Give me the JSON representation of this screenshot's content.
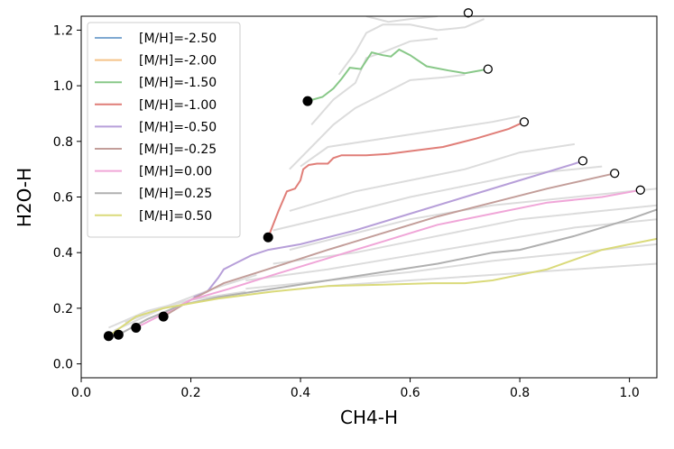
{
  "chart_data": {
    "type": "line",
    "xlabel": "CH4-H",
    "ylabel": "H2O-H",
    "xlim": [
      0.0,
      1.05
    ],
    "ylim": [
      -0.05,
      1.25
    ],
    "xticks": [
      "0.0",
      "0.2",
      "0.4",
      "0.6",
      "0.8",
      "1.0"
    ],
    "yticks": [
      "0.0",
      "0.2",
      "0.4",
      "0.6",
      "0.8",
      "1.0",
      "1.2"
    ],
    "grid": false,
    "legend_position": "top-left",
    "series": [
      {
        "name": "[M/H]=-2.50",
        "color": "#7fa9d1",
        "points": [
          [
            0.7,
            1.26
          ],
          [
            0.706,
            1.262
          ]
        ],
        "start_marker": null,
        "end_marker": [
          0.706,
          1.262
        ]
      },
      {
        "name": "[M/H]=-2.00",
        "color": "#f5c389",
        "points": [],
        "start_marker": null,
        "end_marker": null
      },
      {
        "name": "[M/H]=-1.50",
        "color": "#88c888",
        "points": [
          [
            0.413,
            0.945
          ],
          [
            0.44,
            0.96
          ],
          [
            0.46,
            0.99
          ],
          [
            0.475,
            1.025
          ],
          [
            0.49,
            1.065
          ],
          [
            0.51,
            1.06
          ],
          [
            0.53,
            1.12
          ],
          [
            0.55,
            1.11
          ],
          [
            0.565,
            1.105
          ],
          [
            0.58,
            1.13
          ],
          [
            0.6,
            1.11
          ],
          [
            0.63,
            1.07
          ],
          [
            0.67,
            1.055
          ],
          [
            0.7,
            1.045
          ],
          [
            0.742,
            1.06
          ]
        ],
        "start_marker": [
          0.413,
          0.945
        ],
        "end_marker": [
          0.742,
          1.06
        ]
      },
      {
        "name": "[M/H]=-1.00",
        "color": "#e07e78",
        "points": [
          [
            0.341,
            0.455
          ],
          [
            0.35,
            0.5
          ],
          [
            0.36,
            0.55
          ],
          [
            0.375,
            0.62
          ],
          [
            0.39,
            0.63
          ],
          [
            0.4,
            0.66
          ],
          [
            0.405,
            0.7
          ],
          [
            0.415,
            0.715
          ],
          [
            0.43,
            0.72
          ],
          [
            0.45,
            0.72
          ],
          [
            0.46,
            0.74
          ],
          [
            0.475,
            0.75
          ],
          [
            0.52,
            0.75
          ],
          [
            0.56,
            0.755
          ],
          [
            0.6,
            0.765
          ],
          [
            0.66,
            0.78
          ],
          [
            0.72,
            0.81
          ],
          [
            0.78,
            0.845
          ],
          [
            0.808,
            0.87
          ]
        ],
        "start_marker": [
          0.341,
          0.455
        ],
        "end_marker": [
          0.808,
          0.87
        ]
      },
      {
        "name": "[M/H]=-0.50",
        "color": "#b79fd9",
        "points": [
          [
            0.205,
            0.24
          ],
          [
            0.23,
            0.26
          ],
          [
            0.25,
            0.31
          ],
          [
            0.26,
            0.34
          ],
          [
            0.28,
            0.36
          ],
          [
            0.31,
            0.39
          ],
          [
            0.341,
            0.41
          ],
          [
            0.4,
            0.43
          ],
          [
            0.5,
            0.48
          ],
          [
            0.6,
            0.54
          ],
          [
            0.7,
            0.6
          ],
          [
            0.8,
            0.66
          ],
          [
            0.9,
            0.72
          ],
          [
            0.915,
            0.73
          ]
        ],
        "start_marker": [
          0.15,
          0.17
        ],
        "end_marker": [
          0.915,
          0.73
        ]
      },
      {
        "name": "[M/H]=-0.25",
        "color": "#c39e9a",
        "points": [
          [
            0.15,
            0.17
          ],
          [
            0.2,
            0.23
          ],
          [
            0.26,
            0.29
          ],
          [
            0.34,
            0.34
          ],
          [
            0.45,
            0.41
          ],
          [
            0.55,
            0.47
          ],
          [
            0.65,
            0.53
          ],
          [
            0.75,
            0.58
          ],
          [
            0.85,
            0.63
          ],
          [
            0.973,
            0.685
          ]
        ],
        "start_marker": [
          0.1,
          0.13
        ],
        "end_marker": [
          0.973,
          0.685
        ]
      },
      {
        "name": "[M/H]=0.00",
        "color": "#f0a6d8",
        "points": [
          [
            0.1,
            0.13
          ],
          [
            0.15,
            0.18
          ],
          [
            0.2,
            0.23
          ],
          [
            0.27,
            0.27
          ],
          [
            0.35,
            0.32
          ],
          [
            0.45,
            0.38
          ],
          [
            0.55,
            0.44
          ],
          [
            0.65,
            0.5
          ],
          [
            0.75,
            0.54
          ],
          [
            0.85,
            0.58
          ],
          [
            0.95,
            0.6
          ],
          [
            1.02,
            0.625
          ]
        ],
        "start_marker": [
          0.068,
          0.105
        ],
        "end_marker": [
          1.02,
          0.625
        ]
      },
      {
        "name": "[M/H]=0.25",
        "color": "#b0b0b0",
        "points": [
          [
            0.068,
            0.105
          ],
          [
            0.12,
            0.16
          ],
          [
            0.18,
            0.21
          ],
          [
            0.25,
            0.24
          ],
          [
            0.35,
            0.27
          ],
          [
            0.45,
            0.3
          ],
          [
            0.55,
            0.33
          ],
          [
            0.65,
            0.36
          ],
          [
            0.75,
            0.4
          ],
          [
            0.8,
            0.41
          ],
          [
            0.9,
            0.46
          ],
          [
            1.0,
            0.52
          ],
          [
            1.05,
            0.555
          ]
        ],
        "start_marker": [
          0.05,
          0.1
        ],
        "end_marker": null
      },
      {
        "name": "[M/H]=0.50",
        "color": "#dada7a",
        "points": [
          [
            0.05,
            0.1
          ],
          [
            0.1,
            0.17
          ],
          [
            0.15,
            0.2
          ],
          [
            0.25,
            0.235
          ],
          [
            0.35,
            0.26
          ],
          [
            0.45,
            0.28
          ],
          [
            0.55,
            0.285
          ],
          [
            0.64,
            0.29
          ],
          [
            0.7,
            0.29
          ],
          [
            0.75,
            0.3
          ],
          [
            0.85,
            0.34
          ],
          [
            0.95,
            0.41
          ],
          [
            1.05,
            0.45
          ]
        ],
        "start_marker": null,
        "end_marker": null
      }
    ],
    "background_lines": [
      [
        [
          0.38,
          0.7
        ],
        [
          0.42,
          0.78
        ],
        [
          0.46,
          0.86
        ],
        [
          0.5,
          0.92
        ],
        [
          0.54,
          0.96
        ],
        [
          0.6,
          1.02
        ],
        [
          0.66,
          1.03
        ],
        [
          0.7,
          1.04
        ]
      ],
      [
        [
          0.42,
          0.86
        ],
        [
          0.46,
          0.95
        ],
        [
          0.5,
          1.01
        ],
        [
          0.52,
          1.1
        ],
        [
          0.55,
          1.12
        ],
        [
          0.6,
          1.16
        ],
        [
          0.65,
          1.17
        ]
      ],
      [
        [
          0.47,
          1.04
        ],
        [
          0.5,
          1.12
        ],
        [
          0.52,
          1.19
        ],
        [
          0.55,
          1.22
        ],
        [
          0.6,
          1.22
        ],
        [
          0.65,
          1.2
        ],
        [
          0.7,
          1.21
        ],
        [
          0.735,
          1.24
        ]
      ],
      [
        [
          0.52,
          1.25
        ],
        [
          0.56,
          1.23
        ],
        [
          0.6,
          1.24
        ],
        [
          0.65,
          1.25
        ]
      ],
      [
        [
          0.4,
          0.71
        ],
        [
          0.45,
          0.78
        ],
        [
          0.55,
          0.81
        ],
        [
          0.65,
          0.84
        ],
        [
          0.75,
          0.87
        ],
        [
          0.8,
          0.89
        ]
      ],
      [
        [
          0.38,
          0.55
        ],
        [
          0.5,
          0.62
        ],
        [
          0.6,
          0.66
        ],
        [
          0.7,
          0.7
        ],
        [
          0.8,
          0.76
        ],
        [
          0.9,
          0.79
        ]
      ],
      [
        [
          0.35,
          0.48
        ],
        [
          0.5,
          0.55
        ],
        [
          0.6,
          0.6
        ],
        [
          0.7,
          0.64
        ],
        [
          0.8,
          0.68
        ],
        [
          0.95,
          0.71
        ]
      ],
      [
        [
          0.38,
          0.41
        ],
        [
          0.5,
          0.47
        ],
        [
          0.6,
          0.52
        ],
        [
          0.75,
          0.57
        ],
        [
          0.9,
          0.6
        ],
        [
          1.0,
          0.62
        ],
        [
          1.05,
          0.63
        ]
      ],
      [
        [
          0.35,
          0.36
        ],
        [
          0.5,
          0.4
        ],
        [
          0.65,
          0.46
        ],
        [
          0.8,
          0.52
        ],
        [
          0.95,
          0.55
        ],
        [
          1.05,
          0.57
        ]
      ],
      [
        [
          0.3,
          0.3
        ],
        [
          0.45,
          0.34
        ],
        [
          0.6,
          0.39
        ],
        [
          0.75,
          0.44
        ],
        [
          0.9,
          0.49
        ],
        [
          1.05,
          0.52
        ]
      ],
      [
        [
          0.3,
          0.27
        ],
        [
          0.45,
          0.3
        ],
        [
          0.6,
          0.33
        ],
        [
          0.75,
          0.37
        ],
        [
          0.9,
          0.4
        ],
        [
          1.05,
          0.43
        ]
      ],
      [
        [
          0.45,
          0.28
        ],
        [
          0.6,
          0.3
        ],
        [
          0.75,
          0.32
        ],
        [
          0.9,
          0.34
        ],
        [
          1.05,
          0.36
        ]
      ],
      [
        [
          0.05,
          0.13
        ],
        [
          0.12,
          0.19
        ],
        [
          0.2,
          0.23
        ],
        [
          0.3,
          0.26
        ]
      ],
      [
        [
          0.06,
          0.12
        ],
        [
          0.15,
          0.2
        ],
        [
          0.25,
          0.24
        ],
        [
          0.35,
          0.27
        ]
      ],
      [
        [
          0.08,
          0.15
        ],
        [
          0.16,
          0.21
        ],
        [
          0.24,
          0.27
        ],
        [
          0.32,
          0.32
        ]
      ]
    ]
  },
  "colors": {
    "marker_fill": "#000000",
    "marker_open": "#ffffff",
    "background_line": "#dcdcdc"
  }
}
